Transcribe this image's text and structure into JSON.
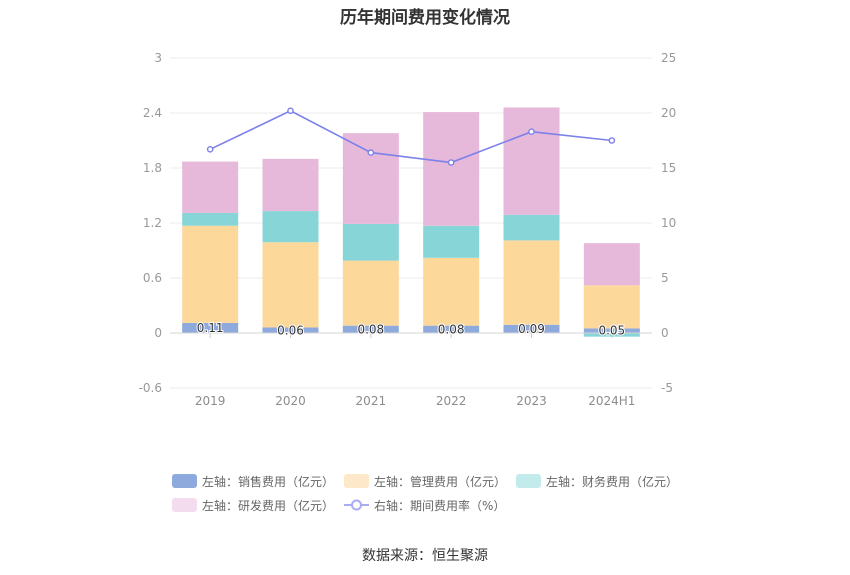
{
  "title": "历年期间费用变化情况",
  "source": "数据来源：恒生聚源",
  "chart_data": {
    "type": "bar",
    "stacked": true,
    "title": "历年期间费用变化情况",
    "xlabel": "",
    "ylabel": "",
    "y2label": "",
    "categories": [
      "2019",
      "2020",
      "2021",
      "2022",
      "2023",
      "2024H1"
    ],
    "series": [
      {
        "name": "左轴：销售费用（亿元）",
        "type": "bar",
        "axis": "left",
        "color": "#8eaadc",
        "legend_color": "#8eaadc",
        "data_labels": true,
        "values": [
          0.11,
          0.06,
          0.08,
          0.08,
          0.09,
          0.05
        ]
      },
      {
        "name": "左轴：管理费用（亿元）",
        "type": "bar",
        "axis": "left",
        "color": "#fdd89b",
        "legend_color": "#fde9c9",
        "values": [
          1.06,
          0.93,
          0.71,
          0.74,
          0.92,
          0.47
        ]
      },
      {
        "name": "左轴：财务费用（亿元）",
        "type": "bar",
        "axis": "left",
        "color": "#88d5d8",
        "legend_color": "#c3ebeb",
        "values": [
          0.14,
          0.34,
          0.4,
          0.35,
          0.28,
          -0.04
        ]
      },
      {
        "name": "左轴：研发费用（亿元）",
        "type": "bar",
        "axis": "left",
        "color": "#e6b9da",
        "legend_color": "#f3dcee",
        "values": [
          0.56,
          0.57,
          0.99,
          1.24,
          1.17,
          0.46
        ]
      },
      {
        "name": "右轴：期间费用率（%）",
        "type": "line",
        "axis": "right",
        "color": "#7b80ea",
        "legend_color": "#a9acf2",
        "values": [
          16.7,
          20.2,
          16.4,
          15.5,
          18.3,
          17.5
        ]
      }
    ],
    "ylim": [
      -0.6,
      3
    ],
    "y2lim": [
      -5,
      25
    ],
    "yticks": [
      "-0.6",
      "0",
      "0.6",
      "1.2",
      "1.8",
      "2.4",
      "3"
    ],
    "y2ticks": [
      "-5",
      "0",
      "5",
      "10",
      "15",
      "20",
      "25"
    ],
    "grid": true,
    "legend_position": "bottom"
  }
}
